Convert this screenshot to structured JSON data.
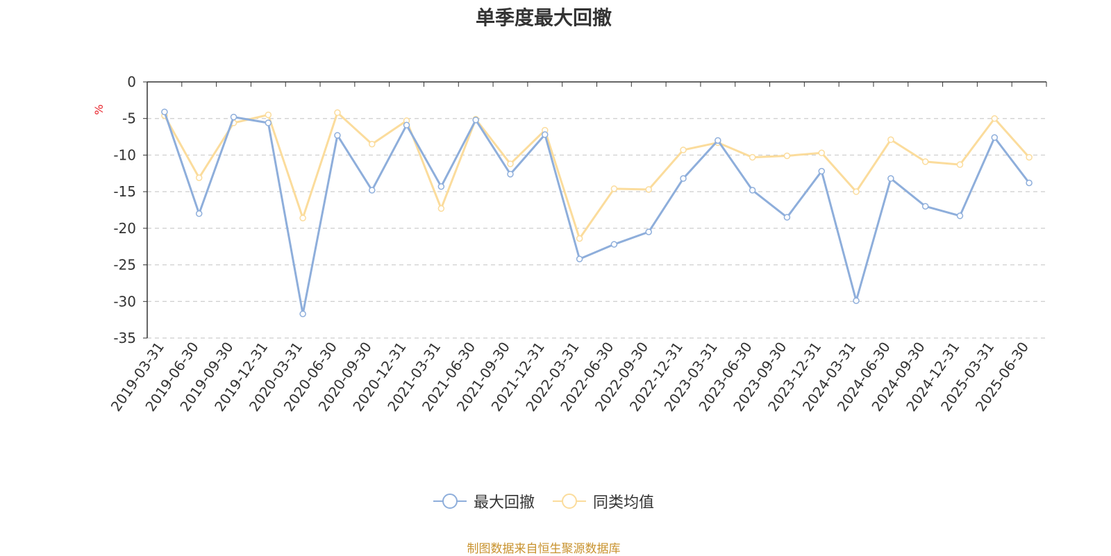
{
  "chart_data": {
    "type": "line",
    "title": "单季度最大回撤",
    "ylabel": "%",
    "xlabel": "",
    "ylim": [
      -35,
      0
    ],
    "yticks": [
      0,
      -5,
      -10,
      -15,
      -20,
      -25,
      -30,
      -35
    ],
    "grid": true,
    "legend_position": "bottom",
    "categories": [
      "2019-03-31",
      "2019-06-30",
      "2019-09-30",
      "2019-12-31",
      "2020-03-31",
      "2020-06-30",
      "2020-09-30",
      "2020-12-31",
      "2021-03-31",
      "2021-06-30",
      "2021-09-30",
      "2021-12-31",
      "2022-03-31",
      "2022-06-30",
      "2022-09-30",
      "2022-12-31",
      "2023-03-31",
      "2023-06-30",
      "2023-09-30",
      "2023-12-31",
      "2024-03-31",
      "2024-06-30",
      "2024-09-30",
      "2024-12-31",
      "2025-03-31",
      "2025-06-30"
    ],
    "series": [
      {
        "name": "最大回撤",
        "color": "#8eaedb",
        "values": [
          -4.1,
          -18.0,
          -4.8,
          -5.6,
          -31.7,
          -7.3,
          -14.8,
          -5.9,
          -14.3,
          -5.2,
          -12.6,
          -7.2,
          -24.2,
          -22.2,
          -20.5,
          -13.2,
          -8.0,
          -14.8,
          -18.5,
          -12.2,
          -29.9,
          -13.2,
          -17.0,
          -18.3,
          -7.6,
          -13.8
        ]
      },
      {
        "name": "同类均值",
        "color": "#fbdc9c",
        "values": [
          -4.6,
          -13.1,
          -5.6,
          -4.5,
          -18.6,
          -4.2,
          -8.5,
          -5.3,
          -17.3,
          -5.1,
          -11.2,
          -6.6,
          -21.4,
          -14.6,
          -14.7,
          -9.3,
          -8.3,
          -10.3,
          -10.1,
          -9.7,
          -15.0,
          -7.9,
          -10.9,
          -11.3,
          -5.0,
          -10.3
        ]
      }
    ]
  },
  "source_note": "制图数据来自恒生聚源数据库"
}
